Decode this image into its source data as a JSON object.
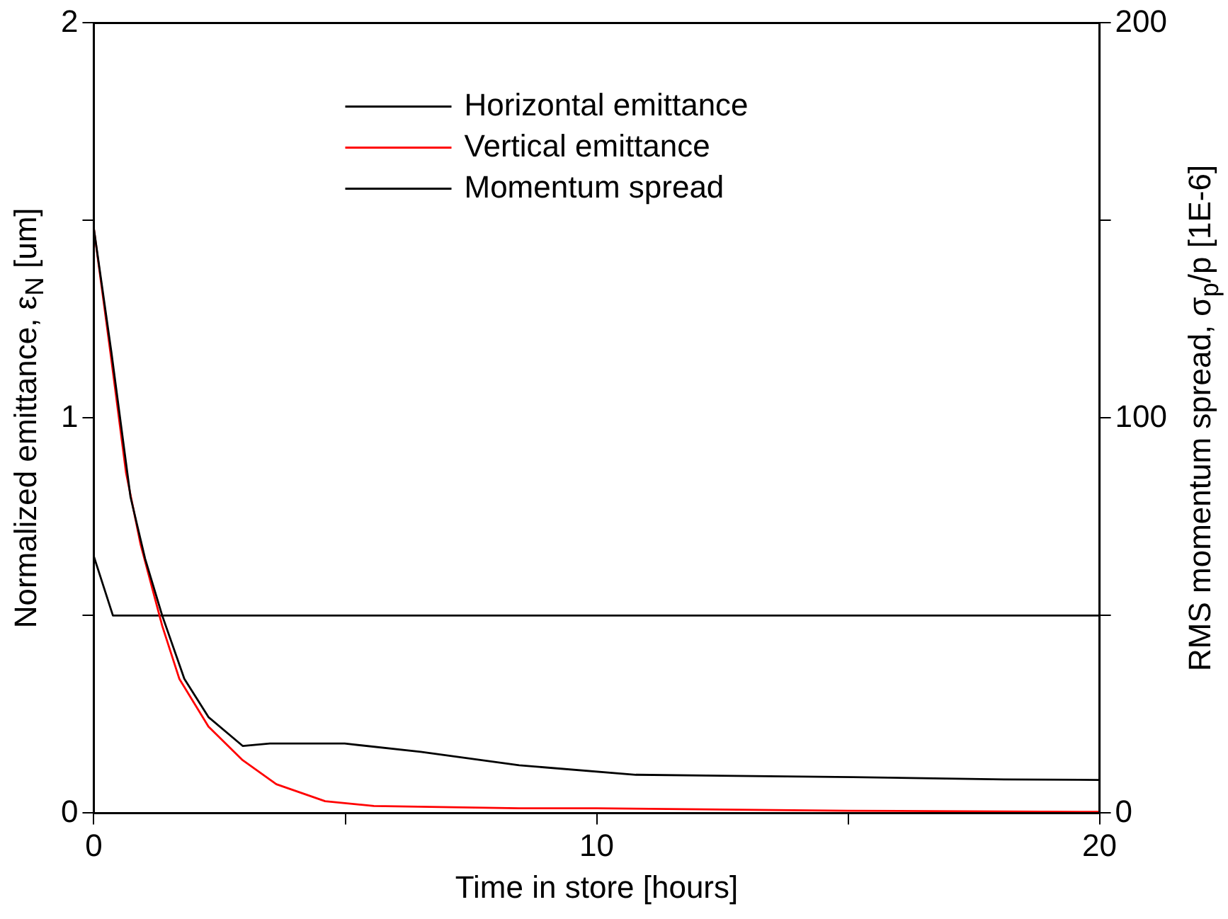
{
  "chart_data": {
    "type": "line",
    "xlabel": "Time in store [hours]",
    "ylabel": "Normalized emittance,  ε$_{N}$ [um]",
    "y2label": "RMS momentum spread,  σ$_{p}$/p  [1E-6]",
    "xlim": [
      0,
      20
    ],
    "xticks": [
      0,
      {
        "value": 5,
        "label": null
      },
      10,
      {
        "value": 15,
        "label": null
      },
      20
    ],
    "ylim": [
      0,
      2
    ],
    "yticks": [
      0,
      {
        "value": 0.5,
        "label": null
      },
      1,
      {
        "value": 1.5,
        "label": null
      },
      2
    ],
    "y2lim": [
      0,
      200
    ],
    "y2ticks": [
      0,
      {
        "value": 50,
        "label": null
      },
      100,
      {
        "value": 150,
        "label": null
      },
      200
    ],
    "grid": false,
    "legend": "top",
    "marker": "none",
    "line_style": "solid",
    "series": [
      {
        "name": "Horizontal emittance",
        "color": "#000000",
        "x": [
          0,
          0.35,
          0.73,
          1.02,
          1.36,
          1.8,
          2.28,
          2.96,
          3.5,
          4.99,
          6.5,
          8.46,
          10.78,
          15.1,
          18.1,
          20
        ],
        "values": [
          1.48,
          1.166,
          0.8,
          0.644,
          0.5,
          0.34,
          0.243,
          0.17,
          0.176,
          0.176,
          0.155,
          0.121,
          0.097,
          0.091,
          0.085,
          0.084
        ]
      },
      {
        "name": "Vertical emittance",
        "color": "#ff0000",
        "x": [
          0,
          0.33,
          0.64,
          0.93,
          1.36,
          1.7,
          2.28,
          2.96,
          3.63,
          4.6,
          5.57,
          8.46,
          10,
          15,
          20
        ],
        "values": [
          1.48,
          1.166,
          0.862,
          0.68,
          0.474,
          0.34,
          0.219,
          0.134,
          0.073,
          0.03,
          0.018,
          0.012,
          0.012,
          0.006,
          0.003
        ]
      },
      {
        "name": "Momentum spread",
        "color": "#000000",
        "axis": "y2",
        "x": [
          0,
          0.38,
          20
        ],
        "values": [
          65,
          50,
          50
        ]
      }
    ]
  }
}
